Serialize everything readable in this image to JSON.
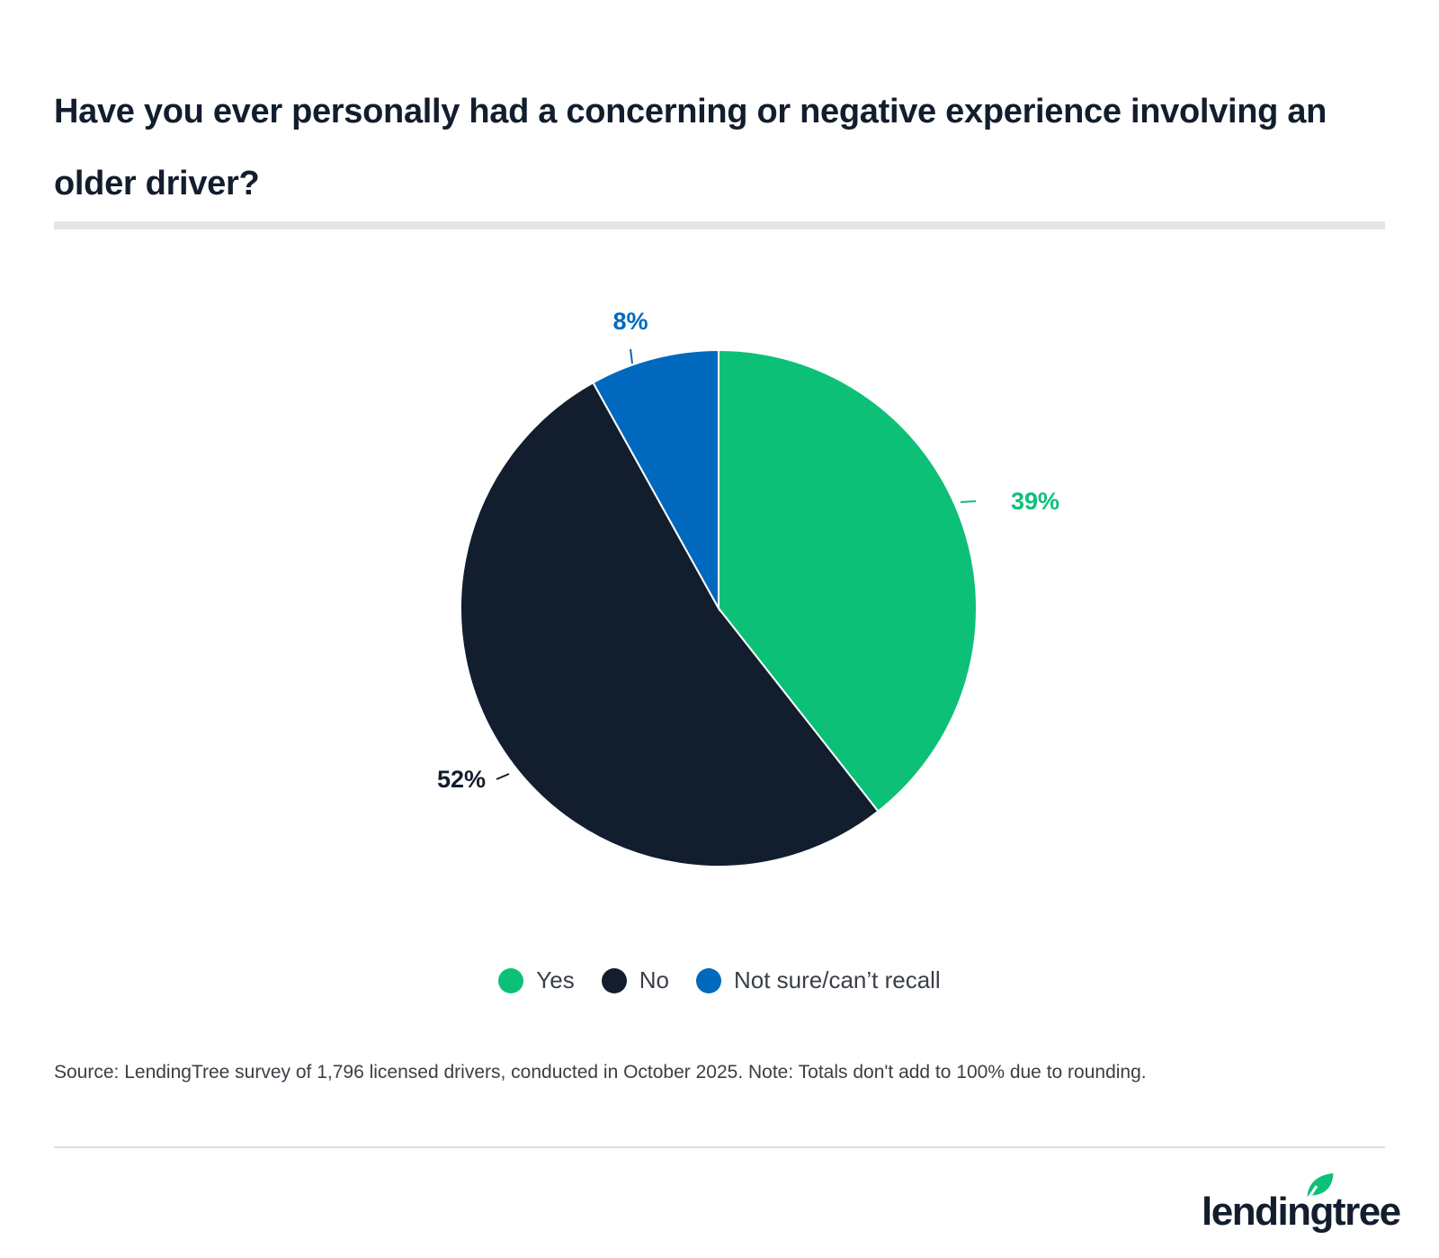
{
  "chart_data": {
    "type": "pie",
    "title": "Have you ever personally had a concerning or negative experience involving an older driver?",
    "categories": [
      "Yes",
      "No",
      "Not sure/can’t recall"
    ],
    "values": [
      39,
      52,
      8
    ],
    "data_labels": [
      "39%",
      "52%",
      "8%"
    ],
    "colors": [
      "#0cc177",
      "#121e2e",
      "#0069be"
    ],
    "start": "top, clockwise",
    "legend_placement": "bottom"
  },
  "source": "Source: LendingTree survey of 1,796 licensed drivers, conducted in October 2025. Note: Totals don't add to 100% due to rounding.",
  "logo": {
    "text": "lendingtree",
    "leaf_color": "#0cc177"
  }
}
